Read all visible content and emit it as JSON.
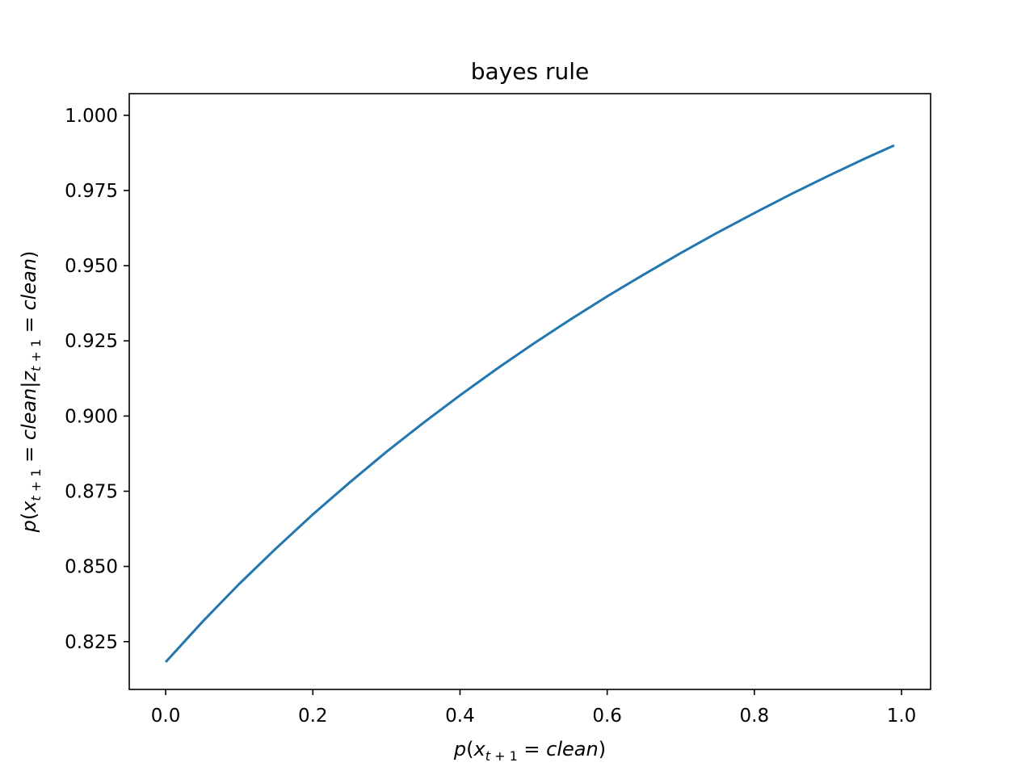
{
  "chart_data": {
    "type": "line",
    "title": "bayes rule",
    "xlabel": "p(x_{t+1} = clean)",
    "ylabel": "p(x_{t+1} = clean|z_{t+1} = clean)",
    "xlim": [
      -0.0495,
      1.0395
    ],
    "ylim": [
      0.8091,
      1.0072
    ],
    "grid": false,
    "legend": "none",
    "x_ticks": [
      "0.0",
      "0.2",
      "0.4",
      "0.6",
      "0.8",
      "1.0"
    ],
    "y_ticks": [
      "0.825",
      "0.850",
      "0.875",
      "0.900",
      "0.925",
      "0.950",
      "0.975",
      "1.000"
    ],
    "series": [
      {
        "color": "#1f77b4",
        "x": [
          0.0,
          0.05,
          0.1,
          0.15,
          0.2,
          0.25,
          0.3,
          0.35,
          0.4,
          0.45,
          0.5,
          0.55,
          0.6,
          0.65,
          0.7,
          0.75,
          0.8,
          0.85,
          0.9,
          0.95,
          0.99
        ],
        "y": [
          0.8182,
          0.8316,
          0.8442,
          0.856,
          0.8673,
          0.8779,
          0.8881,
          0.8977,
          0.9069,
          0.9157,
          0.9241,
          0.9321,
          0.9398,
          0.9471,
          0.9542,
          0.961,
          0.9675,
          0.9738,
          0.9798,
          0.9856,
          0.99
        ]
      }
    ]
  }
}
